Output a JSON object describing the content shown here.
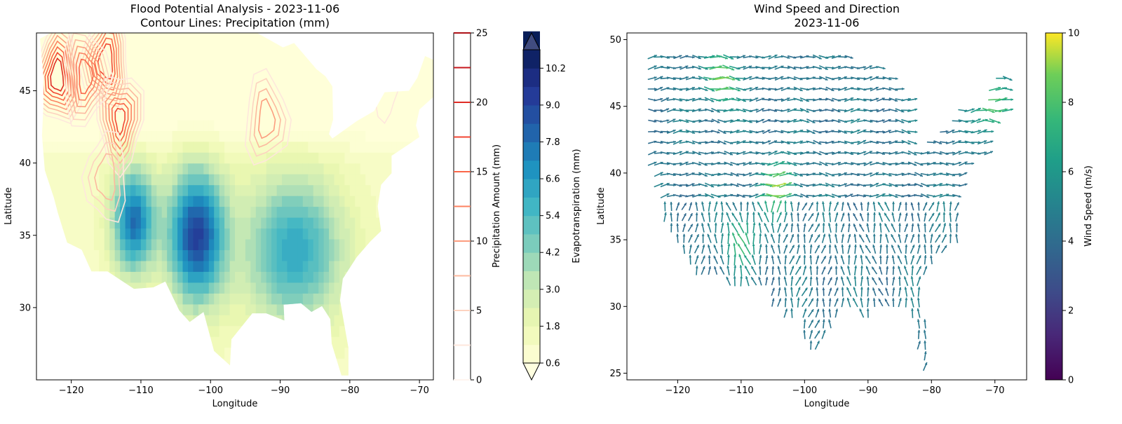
{
  "chart_data": [
    {
      "type": "contour",
      "title": "Flood Potential Analysis - 2023-11-06",
      "subtitle": "Contour Lines: Precipitation (mm)",
      "xlabel": "Longitude",
      "ylabel": "Latitude",
      "xlim": [
        -125,
        -68
      ],
      "ylim": [
        25,
        49
      ],
      "xticks": [
        "-120",
        "-110",
        "-100",
        "-90",
        "-80",
        "-70"
      ],
      "yticks": [
        "30",
        "35",
        "40",
        "45"
      ],
      "filled_field": {
        "name": "Evapotranspiration (mm)",
        "colormap": "YlGnBu",
        "levels_labeled": [
          "0.6",
          "1.8",
          "3.0",
          "4.2",
          "5.4",
          "6.6",
          "7.8",
          "9.0",
          "10.2"
        ],
        "range": [
          0,
          11
        ],
        "extend": "both",
        "hotspots": [
          {
            "lon": -102,
            "lat": 35,
            "value": 10.5
          },
          {
            "lon": -111,
            "lat": 36,
            "value": 9.0
          },
          {
            "lon": -88,
            "lat": 34,
            "value": 7.0
          },
          {
            "lon": -110,
            "lat": 45,
            "value": 2.0
          }
        ]
      },
      "contour_lines": {
        "name": "Precipitation Amount (mm)",
        "colormap": "Reds",
        "levels": [
          0,
          2.5,
          5,
          7.5,
          10,
          12.5,
          15,
          17.5,
          20,
          22.5,
          25
        ],
        "tick_labels": [
          "0",
          "5",
          "10",
          "15",
          "20",
          "25"
        ],
        "range": [
          0,
          25
        ],
        "peaks": [
          {
            "lon": -122,
            "lat": 46,
            "value": 22
          },
          {
            "lon": -115,
            "lat": 47,
            "value": 20
          },
          {
            "lon": -113,
            "lat": 43,
            "value": 18
          },
          {
            "lon": -118,
            "lat": 46,
            "value": 17
          },
          {
            "lon": -115,
            "lat": 39,
            "value": 10
          },
          {
            "lon": -92,
            "lat": 43,
            "value": 12
          },
          {
            "lon": -75,
            "lat": 45,
            "value": 4
          }
        ]
      }
    },
    {
      "type": "quiver",
      "title": "Wind Speed and Direction",
      "subtitle": "2023-11-06",
      "xlabel": "Longitude",
      "ylabel": "Latitude",
      "xlim": [
        -128,
        -65
      ],
      "ylim": [
        24.5,
        50.5
      ],
      "xticks": [
        "-120",
        "-110",
        "-100",
        "-90",
        "-80",
        "-70"
      ],
      "yticks": [
        "25",
        "30",
        "35",
        "40",
        "45",
        "50"
      ],
      "colorbar": {
        "label": "Wind Speed (m/s)",
        "colormap": "viridis",
        "range": [
          0,
          10
        ],
        "tick_labels": [
          "0",
          "2",
          "4",
          "6",
          "8",
          "10"
        ]
      },
      "grid_spacing_deg": 1.0,
      "typical_speed_mps": 4.5,
      "high_wind_zones": [
        {
          "lon": -113,
          "lat": 47,
          "speed": 9
        },
        {
          "lon": -104,
          "lat": 39,
          "speed": 9
        },
        {
          "lon": -110,
          "lat": 35,
          "speed": 8
        },
        {
          "lon": -70,
          "lat": 45,
          "speed": 9
        }
      ]
    }
  ]
}
